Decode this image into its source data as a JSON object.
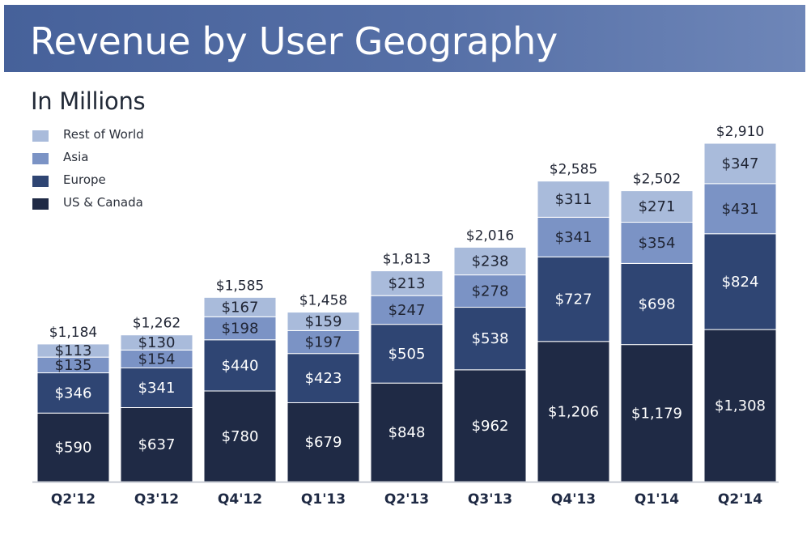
{
  "title": "Revenue by User Geography",
  "subtitle": "In Millions",
  "colors": {
    "title_bar": "#5670a7",
    "us_canada": "#1f2a45",
    "europe": "#2f4573",
    "asia": "#7b93c5",
    "rest_of_world": "#a9bbdb"
  },
  "legend": [
    {
      "label": "Rest of World",
      "color": "#a9bbdb"
    },
    {
      "label": "Asia",
      "color": "#7b93c5"
    },
    {
      "label": "Europe",
      "color": "#2f4573"
    },
    {
      "label": "US & Canada",
      "color": "#1f2a45"
    }
  ],
  "chart_data": {
    "type": "bar",
    "stacked": true,
    "categories": [
      "Q2'12",
      "Q3'12",
      "Q4'12",
      "Q1'13",
      "Q2'13",
      "Q3'13",
      "Q4'13",
      "Q1'14",
      "Q2'14"
    ],
    "series": [
      {
        "name": "US & Canada",
        "color": "#1f2a45",
        "values": [
          590,
          637,
          780,
          679,
          848,
          962,
          1206,
          1179,
          1308
        ],
        "labels": [
          "$590",
          "$637",
          "$780",
          "$679",
          "$848",
          "$962",
          "$1,206",
          "$1,179",
          "$1,308"
        ]
      },
      {
        "name": "Europe",
        "color": "#2f4573",
        "values": [
          346,
          341,
          440,
          423,
          505,
          538,
          727,
          698,
          824
        ],
        "labels": [
          "$346",
          "$341",
          "$440",
          "$423",
          "$505",
          "$538",
          "$727",
          "$698",
          "$824"
        ]
      },
      {
        "name": "Asia",
        "color": "#7b93c5",
        "values": [
          135,
          154,
          198,
          197,
          247,
          278,
          341,
          354,
          431
        ],
        "labels": [
          "$135",
          "$154",
          "$198",
          "$197",
          "$247",
          "$278",
          "$341",
          "$354",
          "$431"
        ]
      },
      {
        "name": "Rest of World",
        "color": "#a9bbdb",
        "values": [
          113,
          130,
          167,
          159,
          213,
          238,
          311,
          271,
          347
        ],
        "labels": [
          "$113",
          "$130",
          "$167",
          "$159",
          "$213",
          "$238",
          "$311",
          "$271",
          "$347"
        ]
      }
    ],
    "totals": [
      1184,
      1262,
      1585,
      1458,
      1813,
      2016,
      2585,
      2502,
      2910
    ],
    "total_labels": [
      "$1,184",
      "$1,262",
      "$1,585",
      "$1,458",
      "$1,813",
      "$2,016",
      "$2,585",
      "$2,502",
      "$2,910"
    ],
    "ylim": [
      0,
      2910
    ],
    "grid": false,
    "legend_position": "top-left"
  }
}
